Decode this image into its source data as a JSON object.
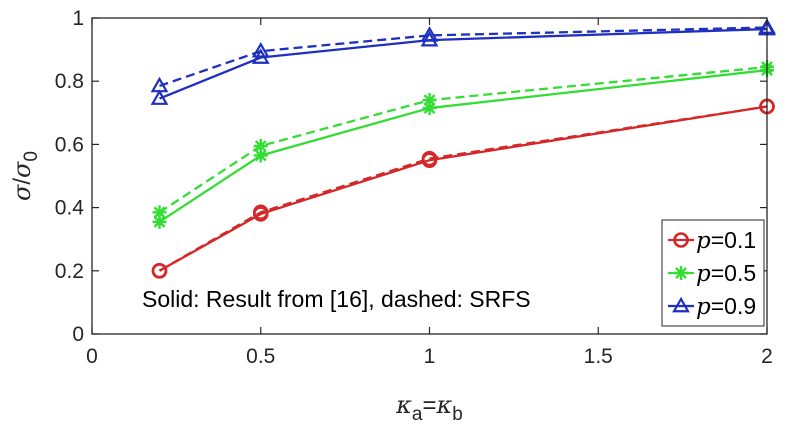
{
  "chart_data": {
    "type": "line",
    "title": "",
    "xlabel": {
      "sym1": "κ",
      "sub1": "a",
      "eq": "=",
      "sym2": "κ",
      "sub2": "b"
    },
    "ylabel": {
      "num": "σ",
      "slash": "/",
      "den": "σ",
      "sub": "0"
    },
    "xlim": [
      0,
      2
    ],
    "ylim": [
      0,
      1
    ],
    "xticks": [
      "0",
      "0.5",
      "1",
      "1.5",
      "2"
    ],
    "yticks": [
      "0",
      "0.2",
      "0.4",
      "0.6",
      "0.8",
      "1"
    ],
    "xtick_values": [
      0,
      0.5,
      1,
      1.5,
      2
    ],
    "ytick_values": [
      0,
      0.2,
      0.4,
      0.6,
      0.8,
      1
    ],
    "x": [
      0.2,
      0.5,
      1,
      2
    ],
    "grid": false,
    "legend_position": "bottom-right",
    "annotation": "Solid: Result from [16], dashed: SRFS",
    "series": [
      {
        "name": "p=0.1",
        "legend_var": "p",
        "legend_val": "=0.1",
        "color": "#d62728",
        "marker": "circle",
        "solid": [
          0.2,
          0.38,
          0.55,
          0.72
        ],
        "dashed": [
          0.2,
          0.385,
          0.555,
          0.72
        ]
      },
      {
        "name": "p=0.5",
        "legend_var": "p",
        "legend_val": "=0.5",
        "color": "#33dd33",
        "marker": "asterisk",
        "solid": [
          0.355,
          0.565,
          0.715,
          0.835
        ],
        "dashed": [
          0.385,
          0.595,
          0.74,
          0.845
        ]
      },
      {
        "name": "p=0.9",
        "legend_var": "p",
        "legend_val": "=0.9",
        "color": "#1f2fbf",
        "marker": "triangle",
        "solid": [
          0.745,
          0.875,
          0.93,
          0.965
        ],
        "dashed": [
          0.785,
          0.895,
          0.945,
          0.97
        ]
      }
    ]
  }
}
